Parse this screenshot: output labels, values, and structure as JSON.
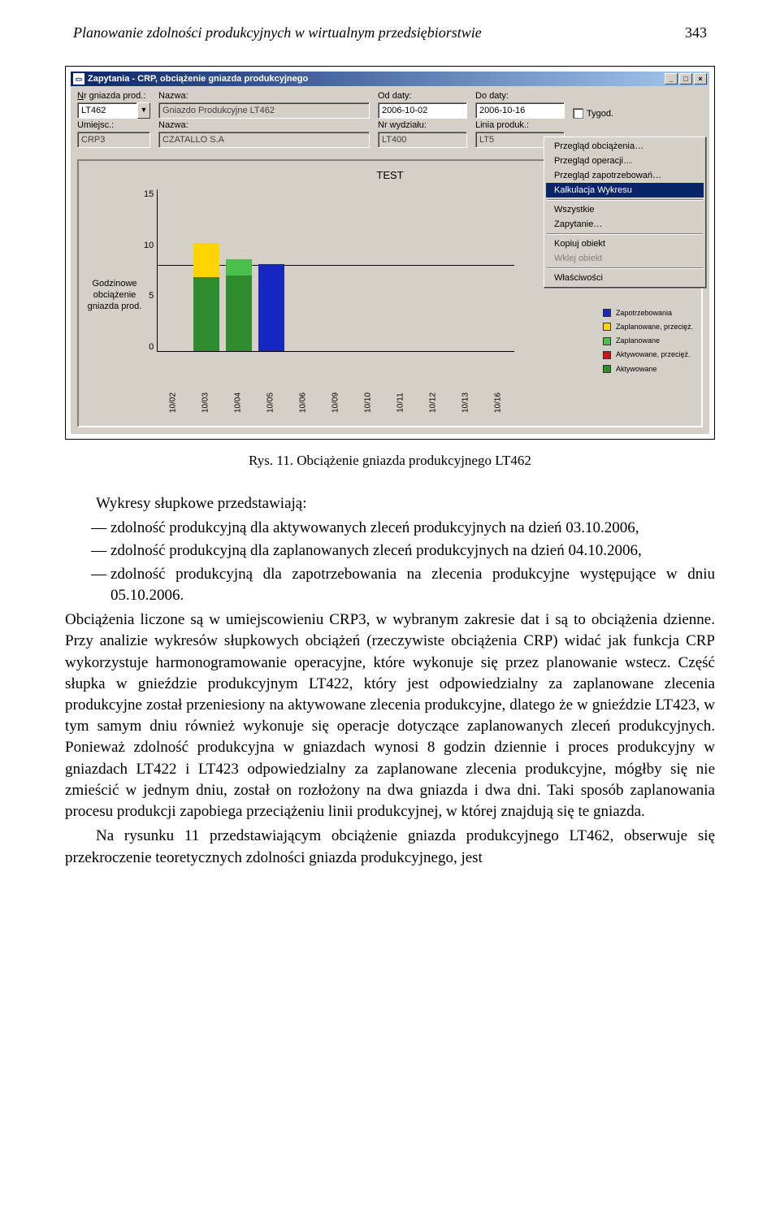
{
  "page": {
    "running_head": "Planowanie zdolności produkcyjnych w wirtualnym przedsiębiorstwie",
    "page_number": "343"
  },
  "window": {
    "title": "Zapytania - CRP, obciążenie gniazda produkcyjnego",
    "icon_glyph": "🗔"
  },
  "form": {
    "labels": {
      "nr_gniazda": "Nr gniazda prod.:",
      "nazwa1": "Nazwa:",
      "od_daty": "Od daty:",
      "do_daty": "Do daty:",
      "umiejsc": "Umiejsc.:",
      "nazwa2": "Nazwa:",
      "nr_wydzialu": "Nr wydziału:",
      "linia": "Linia produk.:",
      "tygod": "Tygod."
    },
    "values": {
      "nr_gniazda": "LT462",
      "nazwa1": "Gniazdo Produkcyjne LT462",
      "od_daty": "2006-10-02",
      "do_daty": "2006-10-16",
      "umiejsc": "CRP3",
      "nazwa2": "CZATALLO S.A",
      "nr_wydzialu": "LT400",
      "linia": "LT5"
    }
  },
  "chart": {
    "type": "bar",
    "title": "TEST",
    "y_label": "Godzinowe obciążenie gniazda prod.",
    "ylim": [
      0,
      15
    ],
    "yticks": [
      0,
      5,
      10,
      15
    ],
    "capacity_line": 8,
    "x_categories": [
      "10/02",
      "10/03",
      "10/04",
      "10/05",
      "10/06",
      "10/09",
      "10/10",
      "10/11",
      "10/12",
      "10/13",
      "10/16"
    ],
    "bars": [
      {
        "x": "10/03",
        "segments": [
          {
            "h": 6.8,
            "color": "#2e8b2e"
          },
          {
            "h": 3.2,
            "color": "#ffd400"
          }
        ]
      },
      {
        "x": "10/04",
        "segments": [
          {
            "h": 7.0,
            "color": "#2e8b2e"
          },
          {
            "h": 1.5,
            "color": "#4bbf4b"
          }
        ]
      },
      {
        "x": "10/05",
        "segments": [
          {
            "h": 8.0,
            "color": "#1626c0"
          }
        ]
      }
    ],
    "colors": {
      "background": "#d4d0c8",
      "axis": "#000000",
      "grid": "#d4d0c8"
    },
    "legend": [
      {
        "label": "Zapotrzebowania",
        "color": "#1626c0"
      },
      {
        "label": "Zaplanowane, przecięż.",
        "color": "#ffd400"
      },
      {
        "label": "Zaplanowane",
        "color": "#4bbf4b"
      },
      {
        "label": "Aktywowane, przecięż.",
        "color": "#d01515"
      },
      {
        "label": "Aktywowane",
        "color": "#2e8b2e"
      }
    ]
  },
  "context_menu": {
    "items": [
      {
        "label": "Przegląd obciążenia…",
        "enabled": true
      },
      {
        "label": "Przegląd operacji…",
        "enabled": true
      },
      {
        "label": "Przegląd zapotrzebowań…",
        "enabled": true
      },
      {
        "label": "Kalkulacja Wykresu",
        "enabled": true,
        "selected": true
      },
      {
        "sep": true
      },
      {
        "label": "Wszystkie",
        "enabled": true
      },
      {
        "label": "Zapytanie…",
        "enabled": true
      },
      {
        "sep": true
      },
      {
        "label": "Kopiuj obiekt",
        "enabled": true
      },
      {
        "label": "Wklej obiekt",
        "enabled": false
      },
      {
        "sep": true
      },
      {
        "label": "Właściwości",
        "enabled": true
      }
    ]
  },
  "caption": "Rys. 11. Obciążenie gniazda produkcyjnego LT462",
  "body": {
    "intro": "Wykresy słupkowe przedstawiają:",
    "bullets": [
      "zdolność produkcyjną dla aktywowanych zleceń produkcyjnych na dzień 03.10.2006,",
      "zdolność produkcyjną dla zaplanowanych zleceń produkcyjnych na dzień 04.10.2006,",
      "zdolność produkcyjną dla zapotrzebowania na zlecenia produkcyjne występujące w dniu 05.10.2006."
    ],
    "para1": "Obciążenia liczone są w umiejscowieniu CRP3, w wybranym zakresie dat i są to obciążenia dzienne. Przy analizie wykresów słupkowych obciążeń (rzeczywiste obciążenia CRP) widać jak funkcja CRP wykorzystuje harmonogramowanie operacyjne, które wykonuje się przez planowanie wstecz. Część słupka w gnieździe produkcyjnym LT422, który jest odpowiedzialny za zaplanowane zlecenia produkcyjne został przeniesiony na aktywowane zlecenia produkcyjne, dlatego że w gnieździe LT423, w tym samym dniu również wykonuje się operacje dotyczące zaplanowanych zleceń produkcyjnych. Ponieważ zdolność produkcyjna w gniazdach wynosi 8 godzin dziennie i proces produkcyjny w gniazdach LT422 i LT423 odpowiedzialny za zaplanowane zlecenia produkcyjne, mógłby się nie zmieścić w jednym dniu, został on rozłożony na dwa gniazda i dwa dni. Taki sposób zaplanowania procesu produkcji zapobiega przeciążeniu linii produkcyjnej, w której znajdują się te gniazda.",
    "para2": "Na rysunku 11 przedstawiającym obciążenie gniazda produkcyjnego LT462, obserwuje się przekroczenie teoretycznych zdolności gniazda produkcyjnego, jest"
  }
}
